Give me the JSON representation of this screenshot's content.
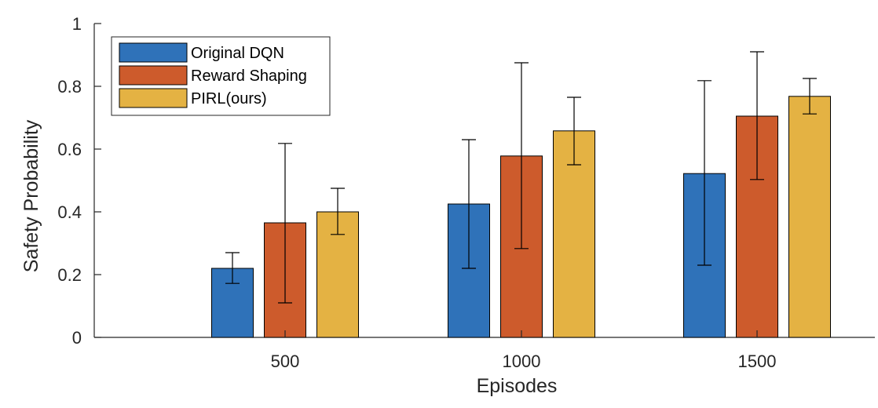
{
  "chart_data": {
    "type": "bar",
    "title": "",
    "xlabel": "Episodes",
    "ylabel": "Safety Probability",
    "categories": [
      "500",
      "1000",
      "1500"
    ],
    "ylim": [
      0,
      1
    ],
    "yticks": [
      "0",
      "0.2",
      "0.4",
      "0.6",
      "0.8",
      "1"
    ],
    "grid": false,
    "legend_position": "top-left",
    "series": [
      {
        "name": "Original DQN",
        "color": "#2F72B9",
        "values": [
          0.22,
          0.425,
          0.522
        ],
        "error_low": [
          0.172,
          0.22,
          0.23
        ],
        "error_high": [
          0.27,
          0.63,
          0.818
        ]
      },
      {
        "name": "Reward Shaping",
        "color": "#CD5B2C",
        "values": [
          0.365,
          0.578,
          0.705
        ],
        "error_low": [
          0.11,
          0.283,
          0.503
        ],
        "error_high": [
          0.618,
          0.875,
          0.91
        ]
      },
      {
        "name": "PIRL(ours)",
        "color": "#E4B243",
        "values": [
          0.4,
          0.658,
          0.768
        ],
        "error_low": [
          0.328,
          0.55,
          0.712
        ],
        "error_high": [
          0.475,
          0.765,
          0.825
        ]
      }
    ]
  }
}
